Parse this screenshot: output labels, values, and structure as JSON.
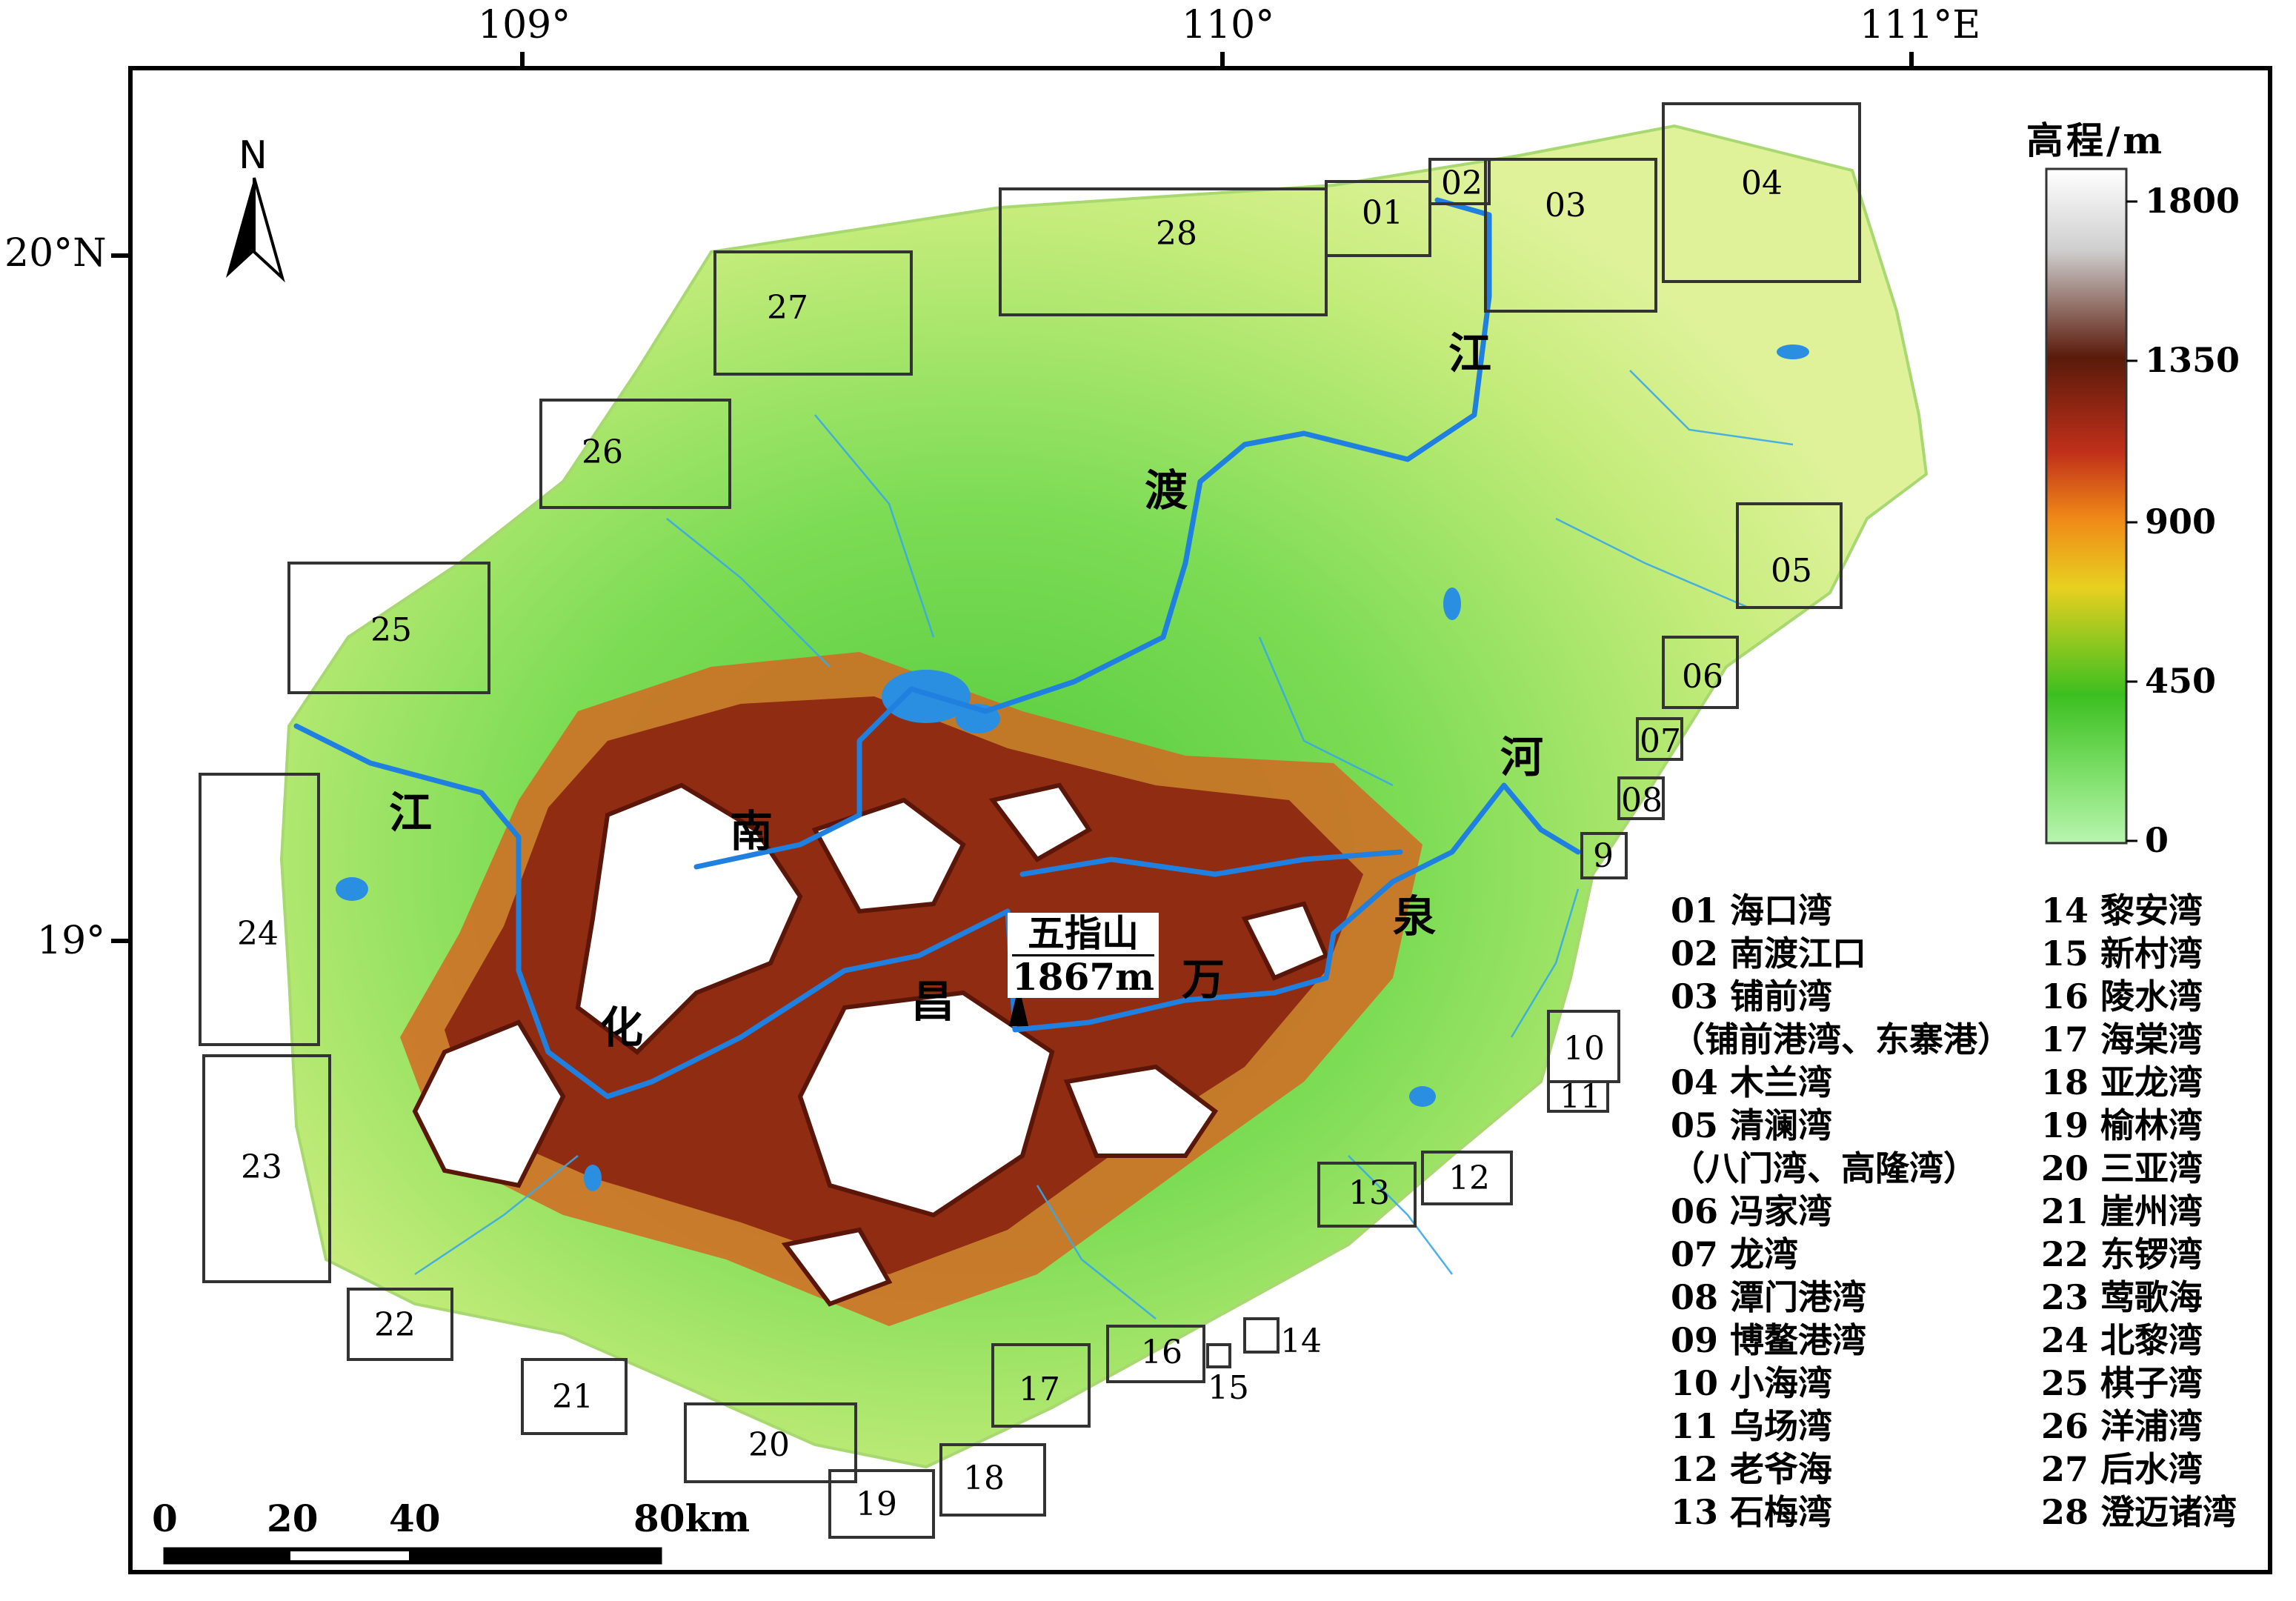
{
  "axes": {
    "longitude_labels": [
      "109°",
      "110°",
      "111°E"
    ],
    "latitude_labels": [
      "20°N",
      "19°"
    ]
  },
  "north_arrow": {
    "label": "N",
    "icon": "north-arrow-icon"
  },
  "elevation_legend": {
    "title": "高程/m",
    "ticks": [
      "1800",
      "1350",
      "900",
      "450",
      "0"
    ],
    "colors": [
      "#ffffff",
      "#c8c8c8",
      "#6b1f0a",
      "#c0301a",
      "#f08a18",
      "#e8d020",
      "#3cbf20",
      "#7fe06a",
      "#a6f0a0"
    ]
  },
  "scale_bar": {
    "labels": [
      "0",
      "20",
      "40",
      "80km"
    ]
  },
  "peak": {
    "name": "五指山",
    "elevation": "1867m"
  },
  "river_names": {
    "nandu": [
      "南",
      "渡",
      "江"
    ],
    "changhua": [
      "昌",
      "化",
      "江"
    ],
    "wanquan": [
      "万",
      "泉",
      "河"
    ]
  },
  "bay_boxes": [
    "01",
    "02",
    "03",
    "04",
    "05",
    "06",
    "07",
    "08",
    "9",
    "10",
    "11",
    "12",
    "13",
    "14",
    "15",
    "16",
    "17",
    "18",
    "19",
    "20",
    "21",
    "22",
    "23",
    "24",
    "25",
    "26",
    "27",
    "28"
  ],
  "bay_list_left": [
    "01 海口湾",
    "02 南渡江口",
    "03 铺前湾",
    "（铺前港湾、东寨港）",
    "04 木兰湾",
    "05 清澜湾",
    "（八门湾、高隆湾）",
    "06 冯家湾",
    "07 龙湾",
    "08 潭门港湾",
    "09 博鳌港湾",
    "10 小海湾",
    "11 乌场湾",
    "12 老爷海",
    "13 石梅湾"
  ],
  "bay_list_right": [
    "14 黎安湾",
    "15 新村湾",
    "16 陵水湾",
    "17 海棠湾",
    "18 亚龙湾",
    "19 榆林湾",
    "20 三亚湾",
    "21 崖州湾",
    "22 东锣湾",
    "23 莺歌海",
    "24 北黎湾",
    "25 棋子湾",
    "26 洋浦湾",
    "27 后水湾",
    "28 澄迈诸湾"
  ]
}
